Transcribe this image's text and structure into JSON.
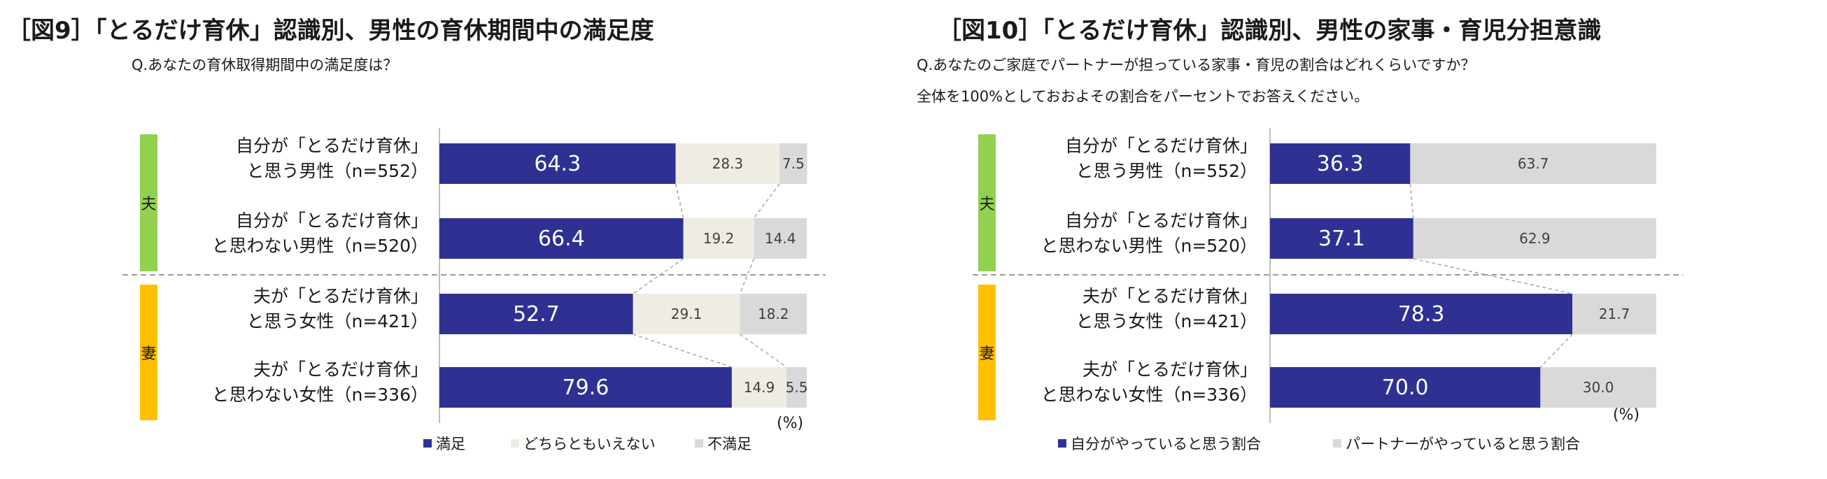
{
  "colors": {
    "navy": "#2E3192",
    "light": "#EFEDE3",
    "gray": "#D9D9D9",
    "green": "#92D050",
    "yellow": "#FFC000",
    "text": "#1A1A1A"
  },
  "chart_data": [
    {
      "type": "bar",
      "stacked": true,
      "orientation": "horizontal",
      "title": "［図9］「とるだけ育休」認識別、男性の育休期間中の満足度",
      "subtitle": [
        "Q.あなたの育休取得期間中の満足度は？"
      ],
      "unit_label": "(%)",
      "xlim": [
        0,
        100
      ],
      "groups": [
        {
          "label": "夫",
          "color": "#92D050"
        },
        {
          "label": "妻",
          "color": "#FFC000"
        }
      ],
      "categories": [
        [
          "自分が「とるだけ育休」",
          "と思う男性（n=552）"
        ],
        [
          "自分が「とるだけ育休」",
          "と思わない男性（n=520）"
        ],
        [
          "夫が「とるだけ育休」",
          "と思う女性（n=421）"
        ],
        [
          "夫が「とるだけ育休」",
          "と思わない女性（n=336）"
        ]
      ],
      "series": [
        {
          "name": "満足",
          "values": [
            64.3,
            66.4,
            52.7,
            79.6
          ],
          "color": "#2E3192"
        },
        {
          "name": "どちらともいえない",
          "values": [
            28.3,
            19.2,
            29.1,
            14.9
          ],
          "color": "#EFEDE3"
        },
        {
          "name": "不満足",
          "values": [
            7.5,
            14.4,
            18.2,
            5.5
          ],
          "color": "#D9D9D9"
        }
      ],
      "legend_position": "bottom"
    },
    {
      "type": "bar",
      "stacked": true,
      "orientation": "horizontal",
      "title": "［図10］「とるだけ育休」認識別、男性の家事・育児分担意識",
      "subtitle": [
        "Q.あなたのご家庭でパートナーが担っている家事・育児の割合はどれくらいですか？",
        "全体を100%としておおよその割合をパーセントでお答えください。"
      ],
      "unit_label": "(%)",
      "xlim": [
        0,
        100
      ],
      "groups": [
        {
          "label": "夫",
          "color": "#92D050"
        },
        {
          "label": "妻",
          "color": "#FFC000"
        }
      ],
      "categories": [
        [
          "自分が「とるだけ育休」",
          "と思う男性（n=552）"
        ],
        [
          "自分が「とるだけ育休」",
          "と思わない男性（n=520）"
        ],
        [
          "夫が「とるだけ育休」",
          "と思う女性（n=421）"
        ],
        [
          "夫が「とるだけ育休」",
          "と思わない女性（n=336）"
        ]
      ],
      "series": [
        {
          "name": "自分がやっていると思う割合",
          "values": [
            36.3,
            37.1,
            78.3,
            70.0
          ],
          "color": "#2E3192"
        },
        {
          "name": "パートナーがやっていると思う割合",
          "values": [
            63.7,
            62.9,
            21.7,
            30.0
          ],
          "color": "#D9D9D9"
        }
      ],
      "legend_position": "bottom"
    }
  ]
}
